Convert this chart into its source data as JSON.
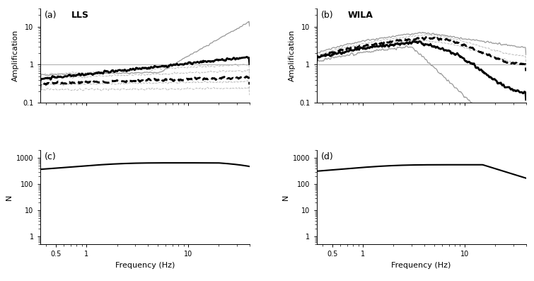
{
  "title_a": "LLS",
  "title_b": "WILA",
  "label_a": "(a)",
  "label_b": "(b)",
  "label_c": "(c)",
  "label_d": "(d)",
  "xlabel": "Frequency (Hz)",
  "ylabel_amp": "Amplification",
  "ylabel_n": "N",
  "freq_min": 0.35,
  "freq_max": 40,
  "amp_ylim": [
    0.1,
    30
  ],
  "n_ylim": [
    0.5,
    2000
  ],
  "background_color": "#ffffff",
  "line_color_dark": "#000000",
  "line_color_gray": "#999999",
  "line_color_lgray": "#bbbbbb"
}
